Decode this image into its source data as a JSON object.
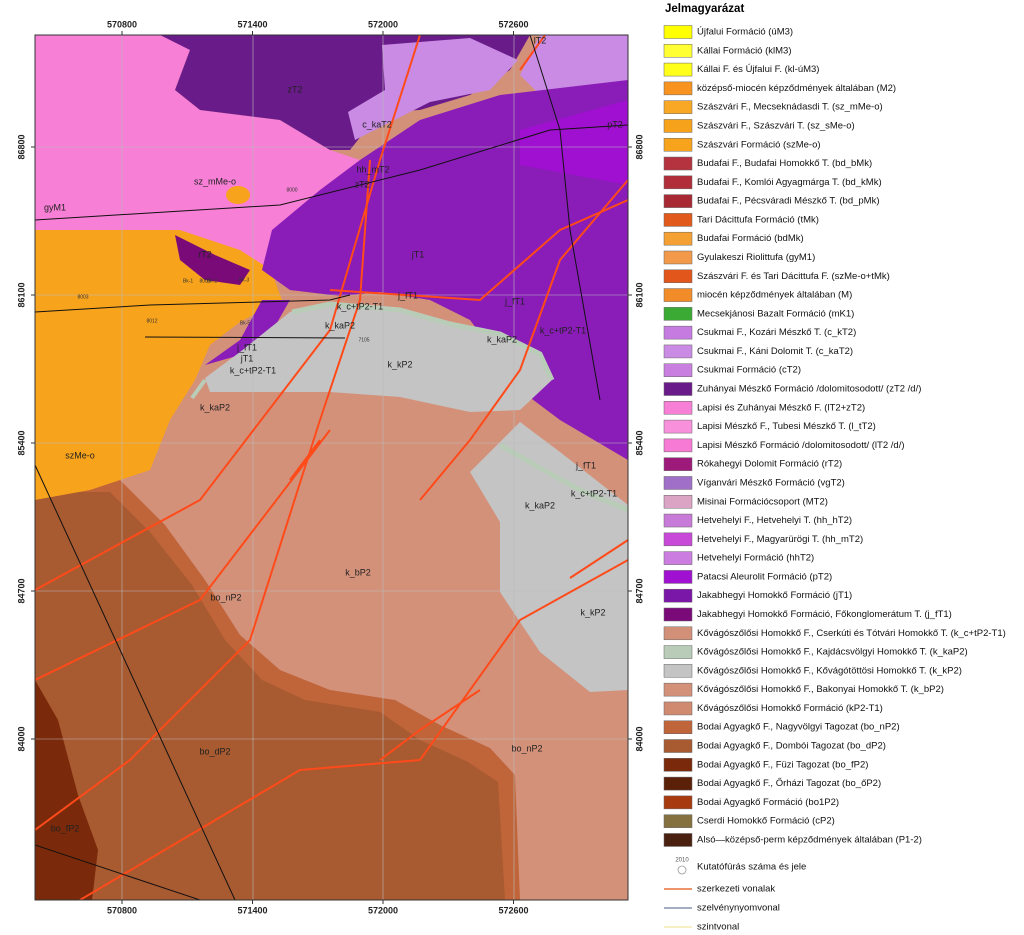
{
  "map": {
    "x_ticks": [
      570800,
      571400,
      572000,
      572600
    ],
    "y_ticks": [
      86800,
      86100,
      85400,
      84700,
      84000
    ],
    "labels": [
      "zT2",
      "c_kaT2",
      "pT2",
      "hh_mT2",
      "zT2",
      "sz_mMe-o",
      "gyM1",
      "rT2",
      "jT1",
      "k_c+tP2-T1",
      "j_fT1",
      "j_fT1",
      "k_kaP2",
      "k_kaP2",
      "k_c+tP2-T1",
      "j_fT1",
      "jT1",
      "k_c+tP2-T1",
      "k_kP2",
      "k_kaP2",
      "szMe-o",
      "j_fT1",
      "k_c+tP2-T1",
      "k_kaP2",
      "k_bP2",
      "bo_nP2",
      "k_kP2",
      "bo_dP2",
      "bo_nP2",
      "bo_fP2",
      "lT2"
    ],
    "small_labels": [
      "8000",
      "8005",
      "Bk-1",
      "Bk-2",
      "Bk-3",
      "8003",
      "8012",
      "Bk-5",
      "7105"
    ]
  },
  "legend": {
    "title": "Jelmagyarázat",
    "items": [
      {
        "label": "Újfalui Formáció (úM3)",
        "color": "#ffff00"
      },
      {
        "label": "Kállai Formáció (klM3)",
        "color": "#ffff33"
      },
      {
        "label": "Kállai F. és Újfalui F. (kl-úM3)",
        "color": "#ffff1a"
      },
      {
        "label": "középső-miocén képződmények általában (M2)",
        "color": "#f7931e"
      },
      {
        "label": "Szászvári F., Mecseknádasdi T. (sz_mMe-o)",
        "color": "#f9a825"
      },
      {
        "label": "Szászvári F., Szászvári T. (sz_sMe-o)",
        "color": "#f7a21b"
      },
      {
        "label": "Szászvári Formáció (szMe-o)",
        "color": "#f8a31c"
      },
      {
        "label": "Budafai F., Budafai Homokkő T. (bd_bMk)",
        "color": "#b5333f"
      },
      {
        "label": "Budafai F., Komlói Agyagmárga T. (bd_kMk)",
        "color": "#b22d3a"
      },
      {
        "label": "Budafai F., Pécsváradi Mészkő T. (bd_pMk)",
        "color": "#a82834"
      },
      {
        "label": "Tari Dácittufa Formáció (tMk)",
        "color": "#e25a1b"
      },
      {
        "label": "Budafai Formáció (bdMk)",
        "color": "#f4a032"
      },
      {
        "label": "Gyulakeszi Riolittufa (gyM1)",
        "color": "#f29a4a"
      },
      {
        "label": "Szászvári F. és Tari Dácittufa F. (szMe-o+tMk)",
        "color": "#e2561c"
      },
      {
        "label": "miocén képződmények általában (M)",
        "color": "#f28c28"
      },
      {
        "label": "Mecsekjánosi Bazalt Formáció (mK1)",
        "color": "#3aaa35"
      },
      {
        "label": "Csukmai F., Kozári Mészkő T. (c_kT2)",
        "color": "#c57be0"
      },
      {
        "label": "Csukmai F., Káni Dolomit T. (c_kaT2)",
        "color": "#c98be3"
      },
      {
        "label": "Csukmai Formáció (cT2)",
        "color": "#c87fe0"
      },
      {
        "label": "Zuhányai Mészkő Formáció /dolomitosodott/ (zT2 /d/)",
        "color": "#6a1b8a"
      },
      {
        "label": "Lapisi és Zuhányai Mészkő F. (lT2+zT2)",
        "color": "#f77fd6"
      },
      {
        "label": "Lapisi Mészkő F., Tubesi Mészkő T. (l_tT2)",
        "color": "#f990dc"
      },
      {
        "label": "Lapisi Mészkő Formáció /dolomitosodott/ (lT2 /d/)",
        "color": "#f77ad4"
      },
      {
        "label": "Rókahegyi Dolomit Formáció (rT2)",
        "color": "#9e1a7a"
      },
      {
        "label": "Víganvári Mészkő Formáció (vgT2)",
        "color": "#a070c8"
      },
      {
        "label": "Misinai Formációcsoport (MT2)",
        "color": "#dca4c4"
      },
      {
        "label": "Hetvehelyi F., Hetvehelyi T. (hh_hT2)",
        "color": "#c87ad8"
      },
      {
        "label": "Hetvehelyi F., Magyarürögi T. (hh_mT2)",
        "color": "#c848d8"
      },
      {
        "label": "Hetvehelyi Formáció (hhT2)",
        "color": "#cc7ee0"
      },
      {
        "label": "Patacsi Aleurolit Formáció (pT2)",
        "color": "#a010d0"
      },
      {
        "label": "Jakabhegyi Homokkő Formáció (jT1)",
        "color": "#7a16a8"
      },
      {
        "label": "Jakabhegyi Homokkő Formáció, Főkonglomerátum T. (j_fT1)",
        "color": "#7a0a78"
      },
      {
        "label": "Kővágószőlősi Homokkő F., Cserkúti és Tótvári Homokkő T. (k_c+tP2-T1)",
        "color": "#d39078"
      },
      {
        "label": "Kővágószőlősi Homokkő F., Kajdácsvölgyi Homokkő T. (k_kaP2)",
        "color": "#b8ccb8"
      },
      {
        "label": "Kővágószőlősi Homokkő F., Kővágótöttösi Homokkő T. (k_kP2)",
        "color": "#c4c4c4"
      },
      {
        "label": "Kővágószőlősi Homokkő F., Bakonyai Homokkő T. (k_bP2)",
        "color": "#d4917a"
      },
      {
        "label": "Kővágószőlősi Homokkő Formáció (kP2-T1)",
        "color": "#d08a70"
      },
      {
        "label": "Bodai Agyagkő F., Nagyvölgyi Tagozat (bo_nP2)",
        "color": "#c0643a"
      },
      {
        "label": "Bodai Agyagkő F., Dombói Tagozat (bo_dP2)",
        "color": "#a85a30"
      },
      {
        "label": "Bodai Agyagkő F., Füzi Tagozat (bo_fP2)",
        "color": "#7a2a0a"
      },
      {
        "label": "Bodai Agyagkő F., Őrházi Tagozat (bo_őP2)",
        "color": "#5a2008"
      },
      {
        "label": "Bodai Agyagkő Formáció (bo1P2)",
        "color": "#a83a10"
      },
      {
        "label": "Cserdi Homokkő Formáció (cP2)",
        "color": "#857040"
      },
      {
        "label": "Alsó—középső-perm képződmények általában (P1-2)",
        "color": "#4a2010"
      }
    ],
    "borehole": {
      "number": "2010",
      "label": "Kutatófúrás száma és jele"
    },
    "lines": [
      {
        "label": "szerkezeti vonalak",
        "color": "#e8703a"
      },
      {
        "label": "szelvénynyomvonal",
        "color": "#8890b0"
      },
      {
        "label": "szintvonal",
        "color": "#f4ecb0"
      }
    ]
  }
}
